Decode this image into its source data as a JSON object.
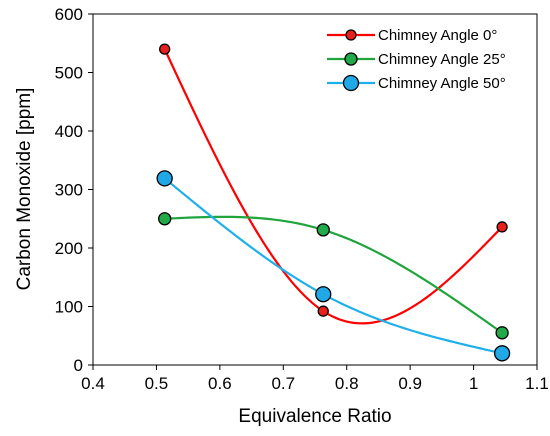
{
  "chart_data": {
    "type": "line",
    "xlabel": "Equivalence Ratio",
    "ylabel": "Carbon Monoxide [ppm]",
    "xlim": [
      0.4,
      1.1
    ],
    "ylim": [
      0,
      600
    ],
    "xticks": [
      "0.4",
      "0.5",
      "0.6",
      "0.7",
      "0.8",
      "0.9",
      "1",
      "1.1"
    ],
    "yticks": [
      "0",
      "100",
      "200",
      "300",
      "400",
      "500",
      "600"
    ],
    "grid": false,
    "legend_position": "top-right",
    "smooth": true,
    "series": [
      {
        "name": "Chimney Angle 0°",
        "color": "#ff0000",
        "marker_fill": "#e8201b",
        "marker": "small-circle",
        "x": [
          0.513,
          0.763,
          1.045
        ],
        "y": [
          540,
          92,
          236
        ]
      },
      {
        "name": "Chimney Angle 25°",
        "color": "#1fa53b",
        "marker_fill": "#22a94a",
        "marker": "medium-circle",
        "x": [
          0.513,
          0.763,
          1.045
        ],
        "y": [
          250,
          231,
          55
        ]
      },
      {
        "name": "Chimney Angle 50°",
        "color": "#1fb0ea",
        "marker_fill": "#21a9e7",
        "marker": "large-circle",
        "x": [
          0.513,
          0.763,
          1.045
        ],
        "y": [
          319,
          121,
          20
        ]
      }
    ]
  }
}
